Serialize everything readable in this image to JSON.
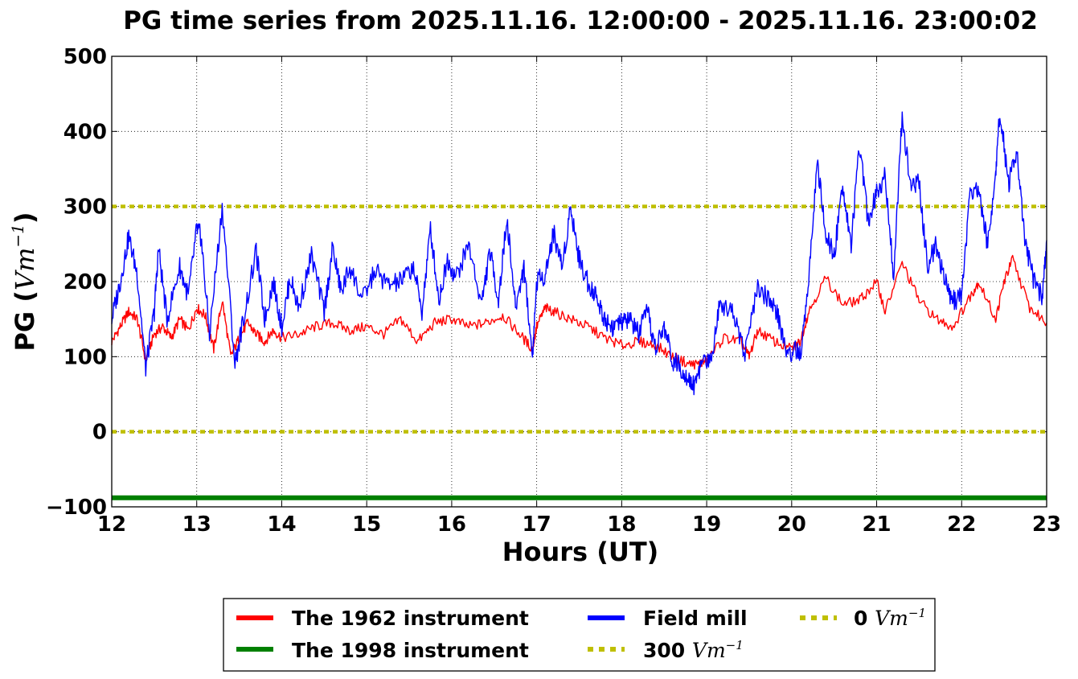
{
  "chart_data": {
    "type": "line",
    "title": "PG time series from 2025.11.16. 12:00:00 - 2025.11.16. 23:00:02",
    "xlabel": "Hours (UT)",
    "ylabel_prefix": "PG (",
    "ylabel_unit": "Vm",
    "ylabel_exp": "−1",
    "ylabel_suffix": ")",
    "xlim": [
      12,
      23
    ],
    "ylim": [
      -100,
      500
    ],
    "xticks": [
      "12",
      "13",
      "14",
      "15",
      "16",
      "17",
      "18",
      "19",
      "20",
      "21",
      "22",
      "23"
    ],
    "yticks": [
      "−100",
      "0",
      "100",
      "200",
      "300",
      "400",
      "500"
    ],
    "grid": true,
    "legend_position": "bottom-center",
    "series": [
      {
        "name": "The 1962 instrument",
        "color": "#ff0000",
        "x": [
          12.0,
          12.1,
          12.2,
          12.3,
          12.4,
          12.5,
          12.6,
          12.7,
          12.8,
          12.9,
          13.0,
          13.1,
          13.2,
          13.3,
          13.4,
          13.5,
          13.6,
          13.7,
          13.8,
          13.9,
          14.0,
          14.2,
          14.4,
          14.6,
          14.8,
          15.0,
          15.2,
          15.4,
          15.6,
          15.8,
          16.0,
          16.2,
          16.4,
          16.6,
          16.8,
          16.95,
          17.0,
          17.1,
          17.2,
          17.4,
          17.6,
          17.8,
          18.0,
          18.2,
          18.4,
          18.6,
          18.8,
          18.9,
          19.0,
          19.2,
          19.4,
          19.5,
          19.6,
          19.8,
          20.0,
          20.1,
          20.2,
          20.4,
          20.6,
          20.8,
          21.0,
          21.1,
          21.3,
          21.5,
          21.7,
          21.9,
          22.1,
          22.2,
          22.4,
          22.5,
          22.6,
          22.8,
          23.0
        ],
        "values": [
          120,
          140,
          160,
          150,
          95,
          130,
          140,
          125,
          150,
          135,
          165,
          155,
          110,
          175,
          100,
          125,
          145,
          130,
          120,
          135,
          125,
          130,
          140,
          145,
          135,
          140,
          130,
          150,
          120,
          145,
          150,
          140,
          145,
          155,
          130,
          110,
          140,
          165,
          160,
          150,
          140,
          125,
          115,
          120,
          115,
          100,
          90,
          90,
          95,
          125,
          120,
          100,
          135,
          120,
          110,
          120,
          160,
          205,
          170,
          175,
          200,
          160,
          225,
          175,
          150,
          140,
          180,
          200,
          150,
          200,
          230,
          165,
          145
        ]
      },
      {
        "name": "The 1998 instrument",
        "color": "#008000",
        "x": [
          12,
          23
        ],
        "values": [
          -88,
          -88
        ]
      },
      {
        "name": "Field mill",
        "color": "#0000ff",
        "x": [
          12.0,
          12.1,
          12.2,
          12.3,
          12.4,
          12.5,
          12.55,
          12.65,
          12.8,
          12.9,
          13.0,
          13.05,
          13.15,
          13.3,
          13.45,
          13.55,
          13.7,
          13.8,
          13.9,
          14.0,
          14.1,
          14.2,
          14.35,
          14.5,
          14.6,
          14.7,
          14.8,
          14.95,
          15.1,
          15.25,
          15.4,
          15.55,
          15.65,
          15.75,
          15.85,
          15.95,
          16.05,
          16.2,
          16.35,
          16.45,
          16.55,
          16.65,
          16.75,
          16.85,
          16.95,
          17.0,
          17.1,
          17.2,
          17.3,
          17.4,
          17.5,
          17.6,
          17.7,
          17.8,
          17.9,
          18.0,
          18.1,
          18.2,
          18.3,
          18.4,
          18.5,
          18.6,
          18.7,
          18.8,
          18.85,
          18.95,
          19.05,
          19.15,
          19.3,
          19.45,
          19.6,
          19.75,
          19.85,
          19.95,
          20.05,
          20.1,
          20.2,
          20.3,
          20.4,
          20.5,
          20.6,
          20.7,
          20.8,
          20.9,
          21.0,
          21.1,
          21.2,
          21.3,
          21.4,
          21.5,
          21.6,
          21.7,
          21.8,
          21.9,
          22.0,
          22.1,
          22.2,
          22.3,
          22.4,
          22.45,
          22.55,
          22.65,
          22.75,
          22.85,
          22.95,
          23.0
        ],
        "values": [
          150,
          200,
          260,
          210,
          85,
          160,
          245,
          150,
          220,
          180,
          270,
          260,
          130,
          300,
          90,
          150,
          240,
          150,
          200,
          140,
          205,
          165,
          235,
          160,
          245,
          185,
          220,
          175,
          215,
          195,
          200,
          220,
          160,
          270,
          175,
          230,
          205,
          250,
          170,
          240,
          175,
          285,
          165,
          220,
          100,
          200,
          210,
          265,
          220,
          300,
          230,
          200,
          180,
          150,
          140,
          145,
          150,
          130,
          160,
          110,
          140,
          95,
          85,
          70,
          60,
          95,
          95,
          170,
          165,
          105,
          190,
          175,
          150,
          100,
          110,
          100,
          200,
          360,
          260,
          235,
          330,
          250,
          380,
          280,
          320,
          340,
          210,
          420,
          330,
          330,
          220,
          250,
          200,
          175,
          180,
          320,
          325,
          250,
          340,
          430,
          330,
          370,
          250,
          200,
          180,
          255
        ]
      }
    ],
    "hlines": [
      {
        "name": "300",
        "unit": "Vm",
        "exp": "−1",
        "value": 300,
        "color": "#bfbf00",
        "style": "dotted"
      },
      {
        "name": "0",
        "unit": "Vm",
        "exp": "−1",
        "value": 0,
        "color": "#bfbf00",
        "style": "dotted"
      }
    ]
  }
}
